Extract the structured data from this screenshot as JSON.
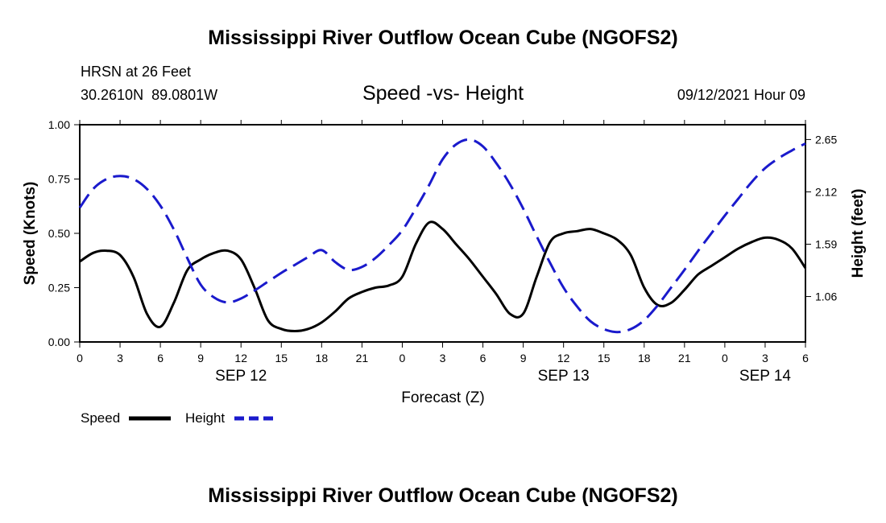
{
  "page": {
    "title_top": "Mississippi River Outflow Ocean Cube (NGOFS2)",
    "title_bottom": "Mississippi River Outflow Ocean Cube (NGOFS2)",
    "station": "HRSN at 26 Feet",
    "coords": "30.2610N  89.0801W",
    "subtitle": "Speed -vs- Height",
    "datetime": "09/12/2021 Hour 09"
  },
  "chart_data": {
    "type": "line",
    "title": "Speed -vs- Height",
    "xlabel": "Forecast (Z)",
    "ylabel_left": "Speed (Knots)",
    "ylabel_right": "Height (feet)",
    "x_range_hours": [
      0,
      54
    ],
    "x_ticks": [
      "0",
      "3",
      "6",
      "9",
      "12",
      "15",
      "18",
      "21",
      "0",
      "3",
      "6",
      "9",
      "12",
      "15",
      "18",
      "21",
      "0",
      "3",
      "6"
    ],
    "day_labels": [
      {
        "label": "SEP 12",
        "at_hour": 12
      },
      {
        "label": "SEP 13",
        "at_hour": 36
      },
      {
        "label": "SEP 14",
        "at_hour": 51
      }
    ],
    "ylim_left": [
      0,
      1.0
    ],
    "yticks_left": [
      "0.00",
      "0.25",
      "0.50",
      "0.75",
      "1.00"
    ],
    "ylim_right": [
      0.6,
      2.8
    ],
    "yticks_right": [
      "1.06",
      "1.59",
      "2.12",
      "2.65"
    ],
    "yticks_right_values": [
      1.06,
      1.59,
      2.12,
      2.65
    ],
    "series": [
      {
        "name": "Speed",
        "axis": "left",
        "color": "#000000",
        "dash": "solid",
        "x": [
          0,
          1,
          2,
          3,
          4,
          5,
          6,
          7,
          8,
          9,
          10,
          11,
          12,
          13,
          14,
          15,
          16,
          17,
          18,
          19,
          20,
          21,
          22,
          23,
          24,
          25,
          26,
          27,
          28,
          29,
          30,
          31,
          32,
          33,
          34,
          35,
          36,
          37,
          38,
          39,
          40,
          41,
          42,
          43,
          44,
          45,
          46,
          47,
          48,
          49,
          50,
          51,
          52,
          53,
          54
        ],
        "values": [
          0.37,
          0.41,
          0.42,
          0.4,
          0.3,
          0.13,
          0.07,
          0.18,
          0.33,
          0.38,
          0.41,
          0.42,
          0.38,
          0.25,
          0.1,
          0.06,
          0.05,
          0.06,
          0.09,
          0.14,
          0.2,
          0.23,
          0.25,
          0.26,
          0.3,
          0.45,
          0.55,
          0.52,
          0.45,
          0.38,
          0.3,
          0.22,
          0.13,
          0.13,
          0.3,
          0.46,
          0.5,
          0.51,
          0.52,
          0.5,
          0.47,
          0.4,
          0.25,
          0.17,
          0.18,
          0.24,
          0.31,
          0.35,
          0.39,
          0.43,
          0.46,
          0.48,
          0.47,
          0.43,
          0.34
        ]
      },
      {
        "name": "Height",
        "axis": "right",
        "color": "#1a1acc",
        "dash": "dashed",
        "x": [
          0,
          1,
          2,
          3,
          4,
          5,
          6,
          7,
          8,
          9,
          10,
          11,
          12,
          13,
          14,
          15,
          16,
          17,
          18,
          19,
          20,
          21,
          22,
          23,
          24,
          25,
          26,
          27,
          28,
          29,
          30,
          31,
          32,
          33,
          34,
          35,
          36,
          37,
          38,
          39,
          40,
          41,
          42,
          43,
          44,
          45,
          46,
          47,
          48,
          49,
          50,
          51,
          52,
          53,
          54
        ],
        "values": [
          1.96,
          2.15,
          2.25,
          2.28,
          2.25,
          2.15,
          1.98,
          1.74,
          1.45,
          1.18,
          1.05,
          1.0,
          1.04,
          1.12,
          1.21,
          1.3,
          1.38,
          1.46,
          1.53,
          1.41,
          1.33,
          1.36,
          1.45,
          1.58,
          1.73,
          1.95,
          2.19,
          2.45,
          2.6,
          2.65,
          2.58,
          2.41,
          2.2,
          1.95,
          1.67,
          1.4,
          1.15,
          0.96,
          0.81,
          0.73,
          0.7,
          0.73,
          0.82,
          0.97,
          1.15,
          1.33,
          1.52,
          1.7,
          1.88,
          2.05,
          2.22,
          2.36,
          2.46,
          2.54,
          2.61
        ]
      }
    ],
    "legend": [
      {
        "label": "Speed",
        "style": "solid-black"
      },
      {
        "label": "Height",
        "style": "dashed-blue"
      }
    ]
  }
}
